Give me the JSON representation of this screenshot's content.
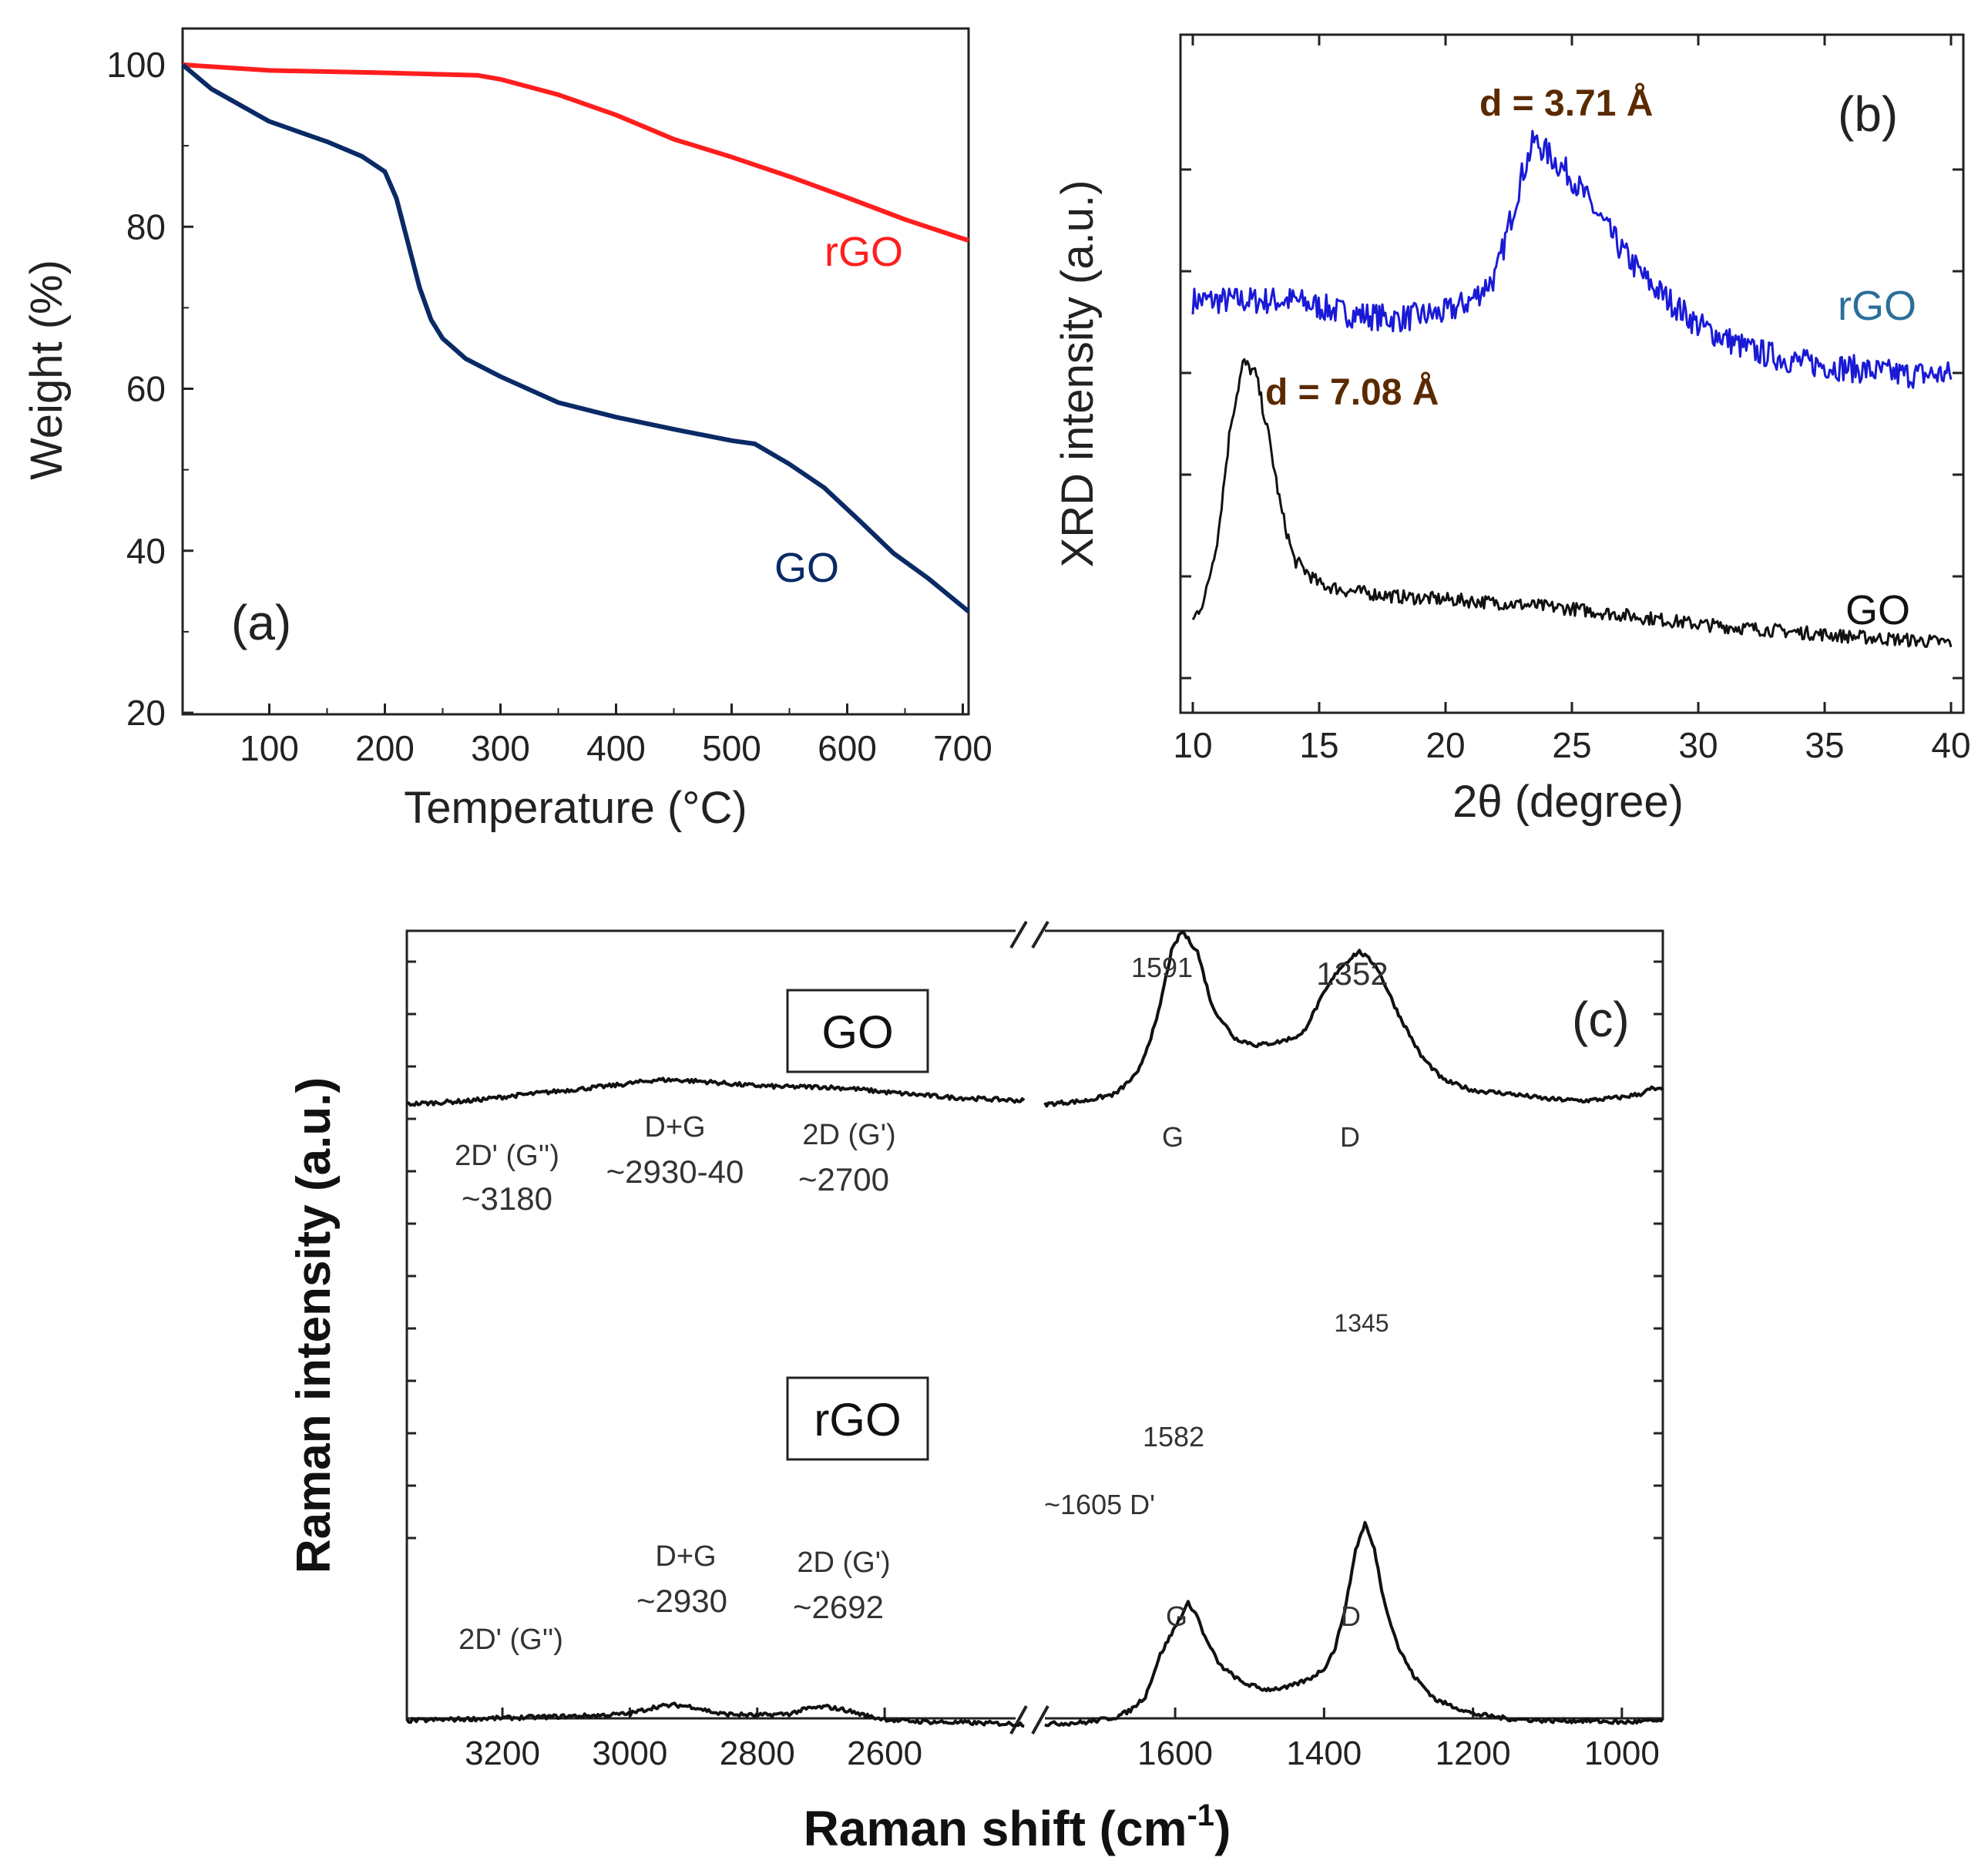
{
  "colors": {
    "rgo_red": "#ff1e1e",
    "go_navy": "#0a2a66",
    "rgo_blue": "#1a1ad6",
    "black": "#111111",
    "rgo_label_b": "#2a6f99"
  },
  "chart_data": [
    {
      "panel": "(a)",
      "type": "line",
      "xlabel": "Temperature (°C)",
      "ylabel": "Weight (%)",
      "xlim": [
        25,
        705
      ],
      "ylim": [
        20,
        102
      ],
      "xticks": [
        100,
        200,
        300,
        400,
        500,
        600,
        700
      ],
      "yticks": [
        20,
        40,
        60,
        80,
        100
      ],
      "series": [
        {
          "name": "rGO",
          "color": "#ff1e1e",
          "x": [
            25,
            100,
            200,
            280,
            300,
            350,
            400,
            450,
            500,
            550,
            600,
            650,
            705
          ],
          "y": [
            100,
            99.3,
            99,
            98.7,
            98.2,
            96.3,
            93.8,
            90.8,
            88.6,
            86.2,
            83.6,
            80.9,
            78.3
          ]
        },
        {
          "name": "GO",
          "color": "#0a2a66",
          "x": [
            25,
            50,
            100,
            150,
            180,
            200,
            210,
            220,
            230,
            240,
            250,
            270,
            300,
            350,
            400,
            450,
            500,
            520,
            550,
            580,
            610,
            640,
            670,
            705
          ],
          "y": [
            100,
            97,
            93,
            90.5,
            88.7,
            86.8,
            83.5,
            78,
            72.5,
            68.5,
            66.2,
            63.7,
            61.5,
            58.3,
            56.5,
            55,
            53.6,
            53.2,
            50.7,
            47.8,
            43.8,
            39.7,
            36.6,
            32.5
          ]
        }
      ],
      "labels": {
        "panel": "(a)",
        "rgo": "rGO",
        "go": "GO"
      }
    },
    {
      "panel": "(b)",
      "type": "line",
      "xlabel": "2θ (degree)",
      "ylabel": "XRD intensity (a.u.)",
      "xlim": [
        10,
        40
      ],
      "xticks": [
        10,
        15,
        20,
        25,
        30,
        35,
        40
      ],
      "y_units": "arbitrary",
      "series": [
        {
          "name": "rGO",
          "color": "#1a1ad6",
          "x": [
            10,
            12,
            14,
            16,
            18,
            20,
            21,
            22,
            22.5,
            23,
            23.5,
            24,
            25,
            26,
            27,
            28,
            30,
            32,
            34,
            36,
            38,
            40
          ],
          "y": [
            0.6,
            0.6,
            0.6,
            0.58,
            0.57,
            0.58,
            0.6,
            0.64,
            0.72,
            0.8,
            0.86,
            0.84,
            0.8,
            0.74,
            0.68,
            0.63,
            0.56,
            0.52,
            0.5,
            0.49,
            0.48,
            0.48
          ]
        },
        {
          "name": "GO",
          "color": "#111111",
          "x": [
            10,
            10.5,
            11,
            11.5,
            12,
            12.5,
            13,
            13.5,
            14,
            15,
            16,
            18,
            20,
            22,
            25,
            28,
            30,
            33,
            36,
            40
          ],
          "y": [
            0.08,
            0.12,
            0.22,
            0.4,
            0.5,
            0.48,
            0.38,
            0.26,
            0.18,
            0.14,
            0.13,
            0.12,
            0.115,
            0.11,
            0.1,
            0.085,
            0.075,
            0.065,
            0.055,
            0.045
          ]
        }
      ],
      "annotations": {
        "rgo_d": "d = 3.71 Å",
        "go_d": "d = 7.08 Å"
      },
      "labels": {
        "panel": "(b)",
        "rgo": "rGO",
        "go": "GO"
      }
    },
    {
      "panel": "(c)",
      "type": "line",
      "xlabel_main": "Raman shift (cm",
      "xlabel_sup": "-1",
      "xlabel_end": ")",
      "ylabel": "Raman intensity (a.u.)",
      "x_reversed": true,
      "segments": [
        [
          3350,
          2380
        ],
        [
          1775,
          945
        ]
      ],
      "xticks_left": [
        3200,
        3000,
        2800,
        2600
      ],
      "xticks_right": [
        1600,
        1400,
        1200,
        1000
      ],
      "y_units": "arbitrary",
      "series": [
        {
          "name": "GO",
          "color": "#111111",
          "x_left": [
            3350,
            3250,
            3180,
            3100,
            3020,
            2960,
            2930,
            2880,
            2820,
            2760,
            2700,
            2650,
            2600,
            2500,
            2380
          ],
          "y_left": [
            0.46,
            0.47,
            0.485,
            0.5,
            0.515,
            0.53,
            0.53,
            0.525,
            0.515,
            0.51,
            0.51,
            0.505,
            0.495,
            0.48,
            0.47
          ],
          "x_right": [
            1775,
            1720,
            1680,
            1650,
            1625,
            1605,
            1591,
            1570,
            1550,
            1520,
            1490,
            1460,
            1430,
            1400,
            1380,
            1360,
            1352,
            1330,
            1300,
            1270,
            1240,
            1200,
            1150,
            1100,
            1050,
            1000,
            975,
            960,
            945
          ],
          "y_right": [
            0.46,
            0.47,
            0.49,
            0.55,
            0.7,
            0.9,
            0.96,
            0.9,
            0.74,
            0.65,
            0.63,
            0.64,
            0.66,
            0.78,
            0.85,
            0.89,
            0.9,
            0.86,
            0.72,
            0.6,
            0.53,
            0.5,
            0.49,
            0.475,
            0.47,
            0.48,
            0.49,
            0.505,
            0.5
          ]
        },
        {
          "name": "rGO",
          "color": "#111111",
          "x_left": [
            3350,
            3250,
            3150,
            3050,
            3000,
            2960,
            2930,
            2900,
            2860,
            2800,
            2750,
            2720,
            2692,
            2660,
            2620,
            2580,
            2500,
            2380
          ],
          "y_left": [
            0.06,
            0.065,
            0.07,
            0.075,
            0.08,
            0.1,
            0.105,
            0.1,
            0.08,
            0.075,
            0.08,
            0.095,
            0.1,
            0.09,
            0.07,
            0.06,
            0.055,
            0.05
          ],
          "x_right": [
            1775,
            1720,
            1680,
            1660,
            1640,
            1620,
            1605,
            1595,
            1582,
            1570,
            1560,
            1540,
            1510,
            1480,
            1450,
            1420,
            1400,
            1385,
            1370,
            1358,
            1345,
            1332,
            1320,
            1300,
            1280,
            1250,
            1200,
            1150,
            1100,
            1050,
            1000,
            945
          ],
          "y_right": [
            0.05,
            0.055,
            0.07,
            0.09,
            0.13,
            0.25,
            0.31,
            0.35,
            0.4,
            0.36,
            0.3,
            0.22,
            0.17,
            0.15,
            0.155,
            0.18,
            0.21,
            0.27,
            0.4,
            0.55,
            0.63,
            0.55,
            0.41,
            0.27,
            0.19,
            0.12,
            0.08,
            0.065,
            0.06,
            0.06,
            0.055,
            0.06
          ]
        }
      ],
      "annotations": {
        "go_box": "GO",
        "rgo_box": "rGO",
        "go_2dp_1": "2D' (G'')",
        "go_2dp_2": "~3180",
        "go_dg_1": "D+G",
        "go_dg_2": "~2930-40",
        "go_2d_1": "2D (G')",
        "go_2d_2": "~2700",
        "go_g_peak": "1591",
        "go_d_peak": "1352",
        "go_g": "G",
        "go_d": "D",
        "rgo_2dp": "2D' (G'')",
        "rgo_dg_1": "D+G",
        "rgo_dg_2": "~2930",
        "rgo_2d_1": "2D (G')",
        "rgo_2d_2": "~2692",
        "rgo_dprime": "~1605 D'",
        "rgo_g_peak": "1582",
        "rgo_d_peak": "1345",
        "rgo_g": "G",
        "rgo_d": "D"
      },
      "labels": {
        "panel": "(c)"
      }
    }
  ]
}
